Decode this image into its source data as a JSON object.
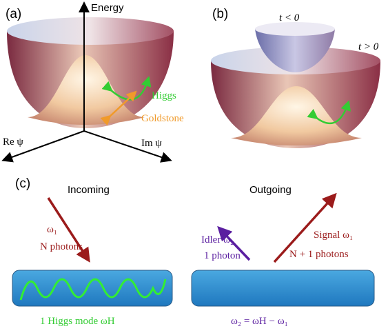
{
  "panel_a": {
    "label": "(a)",
    "energy_axis": "Energy",
    "higgs": "Higgs",
    "goldstone": "Goldstone",
    "re_axis": "Re ψ",
    "im_axis": "Im ψ"
  },
  "panel_b": {
    "label": "(b)",
    "before": "t < 0",
    "after": "t > 0"
  },
  "panel_c": {
    "label": "(c)",
    "incoming": "Incoming",
    "outgoing": "Outgoing",
    "pump_frequency": "ω₁",
    "pump_photons": "N photons",
    "idler_label": "Idler ω₂",
    "idler_photons": "1 photon",
    "signal_label": "Signal ω₁",
    "signal_photons": "N + 1 photons",
    "higgs_mode": "1 Higgs mode ωH",
    "energy_relation": "ω₂ = ωH − ω₁"
  }
}
